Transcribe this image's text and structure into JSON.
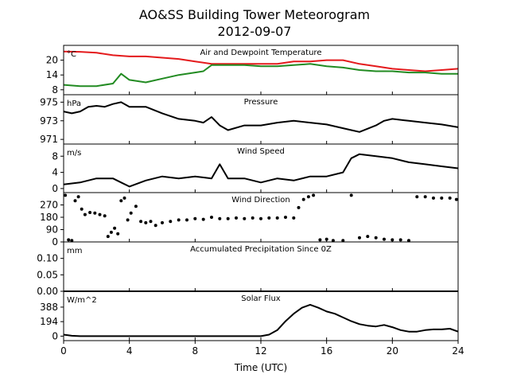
{
  "title": "AO&SS Building Tower Meteorogram",
  "subtitle": "2012-09-07",
  "chart_data": {
    "type": "line",
    "xlabel": "Time (UTC)",
    "xlim": [
      0,
      24
    ],
    "xticks": [
      "0",
      "4",
      "8",
      "12",
      "16",
      "20",
      "24"
    ],
    "panels": [
      {
        "title": "Air and Dewpoint Temperature",
        "unit": "°C",
        "ylim": [
          6,
          26
        ],
        "yticks": [
          "8",
          "14",
          "20"
        ],
        "series": [
          {
            "color": "#e41a1c",
            "x": [
              0,
              1,
              2,
              3,
              4,
              5,
              6,
              7,
              8,
              9,
              10,
              11,
              12,
              13,
              14,
              15,
              16,
              17,
              18,
              19,
              20,
              21,
              22,
              23,
              24
            ],
            "y": [
              23.5,
              23.4,
              23,
              22,
              21.5,
              21.5,
              21,
              20.5,
              19.5,
              18.5,
              18.5,
              18.5,
              18.5,
              18.5,
              19.5,
              19.5,
              20,
              20,
              18.5,
              17.5,
              16.5,
              16,
              15.5,
              16,
              16.5
            ]
          },
          {
            "color": "#228b22",
            "x": [
              0,
              1,
              2,
              3,
              3.5,
              4,
              5,
              6,
              7,
              8,
              8.5,
              9,
              10,
              11,
              12,
              13,
              14,
              15,
              16,
              17,
              18,
              19,
              20,
              21,
              22,
              23,
              24
            ],
            "y": [
              10,
              9.5,
              9.5,
              10.5,
              14.5,
              12,
              11,
              12.5,
              14,
              15,
              15.5,
              18,
              18,
              18,
              17.5,
              17.5,
              18,
              18.5,
              17.5,
              17,
              16,
              15.5,
              15.5,
              15,
              15,
              14.5,
              14.5
            ]
          }
        ]
      },
      {
        "title": "Pressure",
        "unit": "hPa",
        "ylim": [
          970.5,
          975.8
        ],
        "yticks": [
          "971",
          "973",
          "975"
        ],
        "series": [
          {
            "color": "#000000",
            "x": [
              0,
              0.5,
              1,
              1.5,
              2,
              2.5,
              3,
              3.5,
              4,
              5,
              6,
              7,
              8,
              8.5,
              9,
              9.5,
              10,
              11,
              12,
              13,
              14,
              15,
              16,
              17,
              17.5,
              18,
              19,
              19.5,
              20,
              21,
              22,
              23,
              24
            ],
            "y": [
              974,
              973.8,
              974,
              974.5,
              974.6,
              974.5,
              974.8,
              975,
              974.5,
              974.5,
              973.8,
              973.2,
              973,
              972.8,
              973.4,
              972.5,
              972,
              972.5,
              972.5,
              972.8,
              973,
              972.8,
              972.6,
              972.2,
              972,
              971.8,
              972.5,
              973,
              973.2,
              973,
              972.8,
              972.6,
              972.3
            ]
          }
        ]
      },
      {
        "title": "Wind Speed",
        "unit": "m/s",
        "ylim": [
          -1,
          11
        ],
        "yticks": [
          "0",
          "4",
          "8"
        ],
        "series": [
          {
            "color": "#000000",
            "x": [
              0,
              1,
              2,
              3,
              3.5,
              4,
              5,
              6,
              7,
              8,
              9,
              9.5,
              10,
              11,
              12,
              13,
              14,
              15,
              16,
              17,
              17.5,
              18,
              19,
              20,
              21,
              22,
              23,
              24
            ],
            "y": [
              1,
              1.5,
              2.5,
              2.5,
              1.5,
              0.5,
              2,
              3,
              2.5,
              3,
              2.5,
              6,
              2.5,
              2.5,
              1.5,
              2.5,
              2,
              3,
              3,
              4,
              7.5,
              8.5,
              8,
              7.5,
              6.5,
              6,
              5.5,
              5
            ]
          }
        ]
      },
      {
        "title": "Wind Direction",
        "unit": "",
        "ylim": [
          0,
          360
        ],
        "yticks": [
          "0",
          "90",
          "180",
          "270"
        ],
        "series": [
          {
            "color": "#000000",
            "x": [
              0.1,
              0.3,
              0.5,
              0.7,
              0.9,
              1.1,
              1.3,
              1.6,
              1.9,
              2.2,
              2.5,
              2.7,
              2.9,
              3.1,
              3.3,
              3.5,
              3.7,
              3.9,
              4.1,
              4.4,
              4.7,
              5,
              5.3,
              5.6,
              6,
              6.5,
              7,
              7.5,
              8,
              8.5,
              9,
              9.5,
              10,
              10.5,
              11,
              11.5,
              12,
              12.5,
              13,
              13.5,
              14,
              14.3,
              14.6,
              14.9,
              15.2,
              15.6,
              16,
              16.4,
              17,
              17.5,
              18,
              18.5,
              19,
              19.5,
              20,
              20.5,
              21,
              21.5,
              22,
              22.5,
              23,
              23.5,
              23.9
            ],
            "y": [
              340,
              15,
              10,
              300,
              330,
              240,
              200,
              215,
              210,
              200,
              190,
              40,
              70,
              100,
              60,
              300,
              320,
              160,
              210,
              260,
              150,
              140,
              150,
              120,
              140,
              150,
              160,
              160,
              170,
              165,
              180,
              170,
              170,
              175,
              170,
              175,
              170,
              175,
              175,
              180,
              175,
              250,
              310,
              330,
              340,
              15,
              20,
              10,
              10,
              340,
              30,
              40,
              30,
              20,
              15,
              15,
              10,
              330,
              330,
              320,
              320,
              320,
              310
            ]
          }
        ]
      },
      {
        "title": "Accumulated Precipitation Since 0Z",
        "unit": "mm",
        "ylim": [
          0,
          0.15
        ],
        "yticks": [
          "0.00",
          "0.05",
          "0.10"
        ],
        "series": [
          {
            "color": "#000000",
            "x": [
              0,
              24
            ],
            "y": [
              0,
              0
            ]
          }
        ]
      },
      {
        "title": "Solar Flux",
        "unit": "W/m^2",
        "ylim": [
          -60,
          600
        ],
        "yticks": [
          "0",
          "194",
          "388"
        ],
        "series": [
          {
            "color": "#000000",
            "x": [
              0,
              0.5,
              1,
              2,
              4,
              6,
              8,
              10,
              12,
              12.5,
              13,
              13.5,
              14,
              14.5,
              15,
              15.5,
              16,
              16.5,
              17,
              17.5,
              18,
              18.5,
              19,
              19.5,
              20,
              20.5,
              21,
              21.5,
              22,
              22.5,
              23,
              23.5,
              24
            ],
            "y": [
              20,
              5,
              0,
              0,
              0,
              0,
              0,
              0,
              0,
              20,
              80,
              200,
              300,
              380,
              420,
              380,
              330,
              300,
              250,
              200,
              160,
              140,
              130,
              150,
              120,
              80,
              60,
              60,
              80,
              90,
              90,
              100,
              60
            ]
          }
        ]
      }
    ]
  }
}
